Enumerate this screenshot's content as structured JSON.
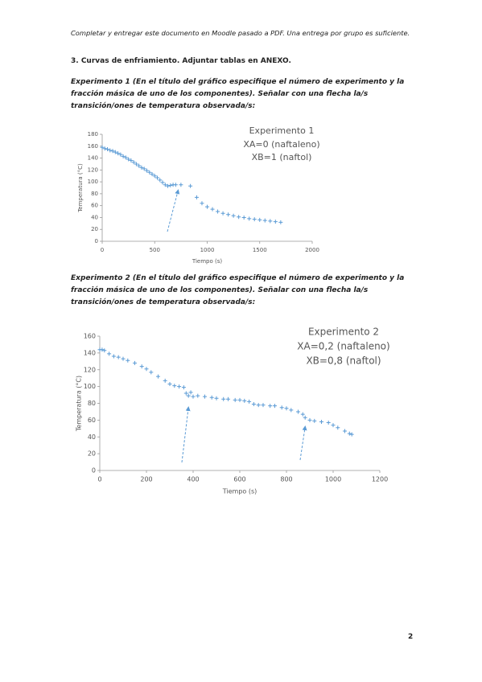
{
  "header": "Completar y entregar este documento en Moodle pasado a PDF. Una entrega por grupo es suficiente.",
  "section_title": "3. Curvas de enfriamiento. Adjuntar tablas en ANEXO.",
  "experiments": [
    {
      "instruction": "Experimento 1 (En el título del gráfico especifique el número de experimento y la fracción másica de uno de los componentes). Señalar con una flecha la/s transición/ones de temperatura observada/s:",
      "chart": {
        "type": "scatter",
        "title": [
          "Experimento 1",
          "XA=0 (naftaleno)",
          "XB=1 (naftol)"
        ],
        "x_label": "Tiempo (s)",
        "y_label": "Temperatura (°C)",
        "color": "#5b9bd5",
        "x": [
          0,
          25,
          50,
          75,
          100,
          125,
          150,
          175,
          200,
          225,
          250,
          275,
          300,
          325,
          350,
          375,
          400,
          425,
          450,
          475,
          500,
          525,
          550,
          575,
          600,
          625,
          650,
          675,
          700,
          750,
          840,
          900,
          950,
          1000,
          1050,
          1100,
          1150,
          1200,
          1250,
          1300,
          1350,
          1400,
          1450,
          1500,
          1550,
          1600,
          1650,
          1700
        ],
        "values": [
          158,
          156,
          155,
          153,
          152,
          150,
          148,
          146,
          143,
          141,
          138,
          136,
          133,
          130,
          127,
          124,
          122,
          119,
          116,
          113,
          110,
          107,
          103,
          99,
          95,
          93,
          94,
          95,
          95,
          95,
          93,
          74,
          64,
          58,
          54,
          50,
          47,
          45,
          43,
          41,
          40,
          38,
          37,
          36,
          35,
          34,
          33,
          32
        ],
        "xlim": [
          0,
          2000
        ],
        "ylim": [
          0,
          180
        ],
        "xticks": [
          0,
          500,
          1000,
          1500,
          2000
        ],
        "yticks": [
          0,
          20,
          40,
          60,
          80,
          100,
          120,
          140,
          160,
          180
        ]
      }
    },
    {
      "instruction": "Experimento 2 (En el título del gráfico especifique el número de experimento y la fracción másica de uno de los componentes). Señalar con una flecha la/s transición/ones de temperatura observada/s:",
      "chart": {
        "type": "scatter",
        "title": [
          "Experimento 2",
          "XA=0,2 (naftaleno)",
          "XB=0,8 (naftol)"
        ],
        "x_label": "Tiempo (s)",
        "y_label": "Temperatura (°C)",
        "color": "#5b9bd5",
        "x": [
          0,
          10,
          20,
          40,
          60,
          80,
          100,
          120,
          150,
          180,
          200,
          220,
          250,
          280,
          300,
          320,
          340,
          360,
          370,
          380,
          390,
          400,
          420,
          450,
          480,
          500,
          530,
          550,
          580,
          600,
          620,
          640,
          660,
          680,
          700,
          730,
          750,
          780,
          800,
          820,
          850,
          870,
          880,
          900,
          920,
          950,
          980,
          1000,
          1020,
          1050,
          1070,
          1080
        ],
        "values": [
          144,
          144,
          143,
          139,
          136,
          135,
          133,
          131,
          128,
          124,
          121,
          117,
          112,
          107,
          103,
          101,
          100,
          99,
          92,
          89,
          93,
          88,
          89,
          88,
          87,
          86,
          85,
          85,
          84,
          84,
          83,
          82,
          79,
          78,
          78,
          77,
          77,
          75,
          74,
          72,
          70,
          67,
          63,
          60,
          59,
          58,
          57,
          54,
          51,
          47,
          44,
          43
        ],
        "xlim": [
          0,
          1200
        ],
        "ylim": [
          0,
          160
        ],
        "xticks": [
          0,
          200,
          400,
          600,
          800,
          1000,
          1200
        ],
        "yticks": [
          0,
          20,
          40,
          60,
          80,
          100,
          120,
          140,
          160
        ]
      }
    }
  ],
  "page_number": "2"
}
